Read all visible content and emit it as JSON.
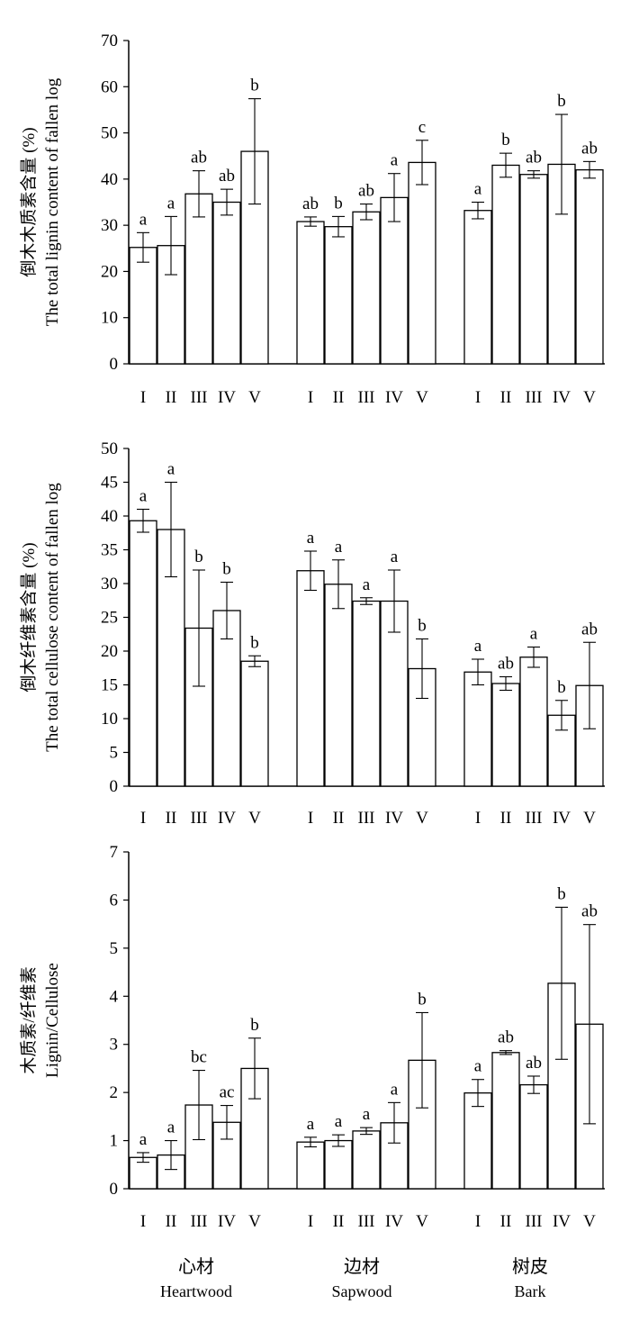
{
  "group_labels": [
    {
      "zh": "心材",
      "en": "Heartwood"
    },
    {
      "zh": "边材",
      "en": "Sapwood"
    },
    {
      "zh": "树皮",
      "en": "Bark"
    }
  ],
  "chart_data": [
    {
      "type": "bar",
      "ylabel_zh": "倒木木质素含量 (%)",
      "ylabel_en": "The total lignin content of fallen log",
      "ylim": [
        0,
        70
      ],
      "yticks": [
        0,
        10,
        20,
        30,
        40,
        50,
        60,
        70
      ],
      "categories": [
        "I",
        "II",
        "III",
        "IV",
        "V"
      ],
      "groups": [
        {
          "name": "Heartwood",
          "values": [
            25.2,
            25.6,
            36.8,
            35.0,
            46.0
          ],
          "errors": [
            3.2,
            6.3,
            5.0,
            2.8,
            11.4
          ],
          "letters": [
            "a",
            "a",
            "ab",
            "ab",
            "b"
          ]
        },
        {
          "name": "Sapwood",
          "values": [
            30.8,
            29.7,
            32.9,
            36.0,
            43.6
          ],
          "errors": [
            1.0,
            2.2,
            1.7,
            5.2,
            4.8
          ],
          "letters": [
            "ab",
            "b",
            "ab",
            "a",
            "c"
          ]
        },
        {
          "name": "Bark",
          "values": [
            33.2,
            43.0,
            41.0,
            43.2,
            42.0
          ],
          "errors": [
            1.8,
            2.6,
            0.8,
            10.8,
            1.8
          ],
          "letters": [
            "a",
            "b",
            "ab",
            "b",
            "ab"
          ]
        }
      ]
    },
    {
      "type": "bar",
      "ylabel_zh": "倒木纤维素含量 (%)",
      "ylabel_en": "The total cellulose content of fallen log",
      "ylim": [
        0,
        50
      ],
      "yticks": [
        0,
        5,
        10,
        15,
        20,
        25,
        30,
        35,
        40,
        45,
        50
      ],
      "categories": [
        "I",
        "II",
        "III",
        "IV",
        "V"
      ],
      "groups": [
        {
          "name": "Heartwood",
          "values": [
            39.3,
            38.0,
            23.4,
            26.0,
            18.5
          ],
          "errors": [
            1.7,
            7.0,
            8.6,
            4.2,
            0.8
          ],
          "letters": [
            "a",
            "a",
            "b",
            "b",
            "b"
          ]
        },
        {
          "name": "Sapwood",
          "values": [
            31.9,
            29.9,
            27.4,
            27.4,
            17.4
          ],
          "errors": [
            2.9,
            3.6,
            0.5,
            4.6,
            4.4
          ],
          "letters": [
            "a",
            "a",
            "a",
            "a",
            "b"
          ]
        },
        {
          "name": "Bark",
          "values": [
            16.9,
            15.2,
            19.1,
            10.5,
            14.9
          ],
          "errors": [
            1.9,
            1.0,
            1.5,
            2.2,
            6.4
          ],
          "letters": [
            "a",
            "ab",
            "a",
            "b",
            "ab"
          ]
        }
      ]
    },
    {
      "type": "bar",
      "ylabel_zh": "木质素/纤维素",
      "ylabel_en": "Lignin/Cellulose",
      "ylim": [
        0,
        7
      ],
      "yticks": [
        0,
        1,
        2,
        3,
        4,
        5,
        6,
        7
      ],
      "categories": [
        "I",
        "II",
        "III",
        "IV",
        "V"
      ],
      "groups": [
        {
          "name": "Heartwood",
          "values": [
            0.65,
            0.7,
            1.74,
            1.38,
            2.5
          ],
          "errors": [
            0.1,
            0.3,
            0.72,
            0.35,
            0.63
          ],
          "letters": [
            "a",
            "a",
            "bc",
            "ac",
            "b"
          ]
        },
        {
          "name": "Sapwood",
          "values": [
            0.97,
            1.0,
            1.2,
            1.37,
            2.67
          ],
          "errors": [
            0.1,
            0.12,
            0.07,
            0.42,
            0.99
          ],
          "letters": [
            "a",
            "a",
            "a",
            "a",
            "b"
          ]
        },
        {
          "name": "Bark",
          "values": [
            1.99,
            2.83,
            2.16,
            4.27,
            3.42
          ],
          "errors": [
            0.28,
            0.04,
            0.18,
            1.58,
            2.07
          ],
          "letters": [
            "a",
            "ab",
            "ab",
            "b",
            "ab"
          ]
        }
      ]
    }
  ]
}
